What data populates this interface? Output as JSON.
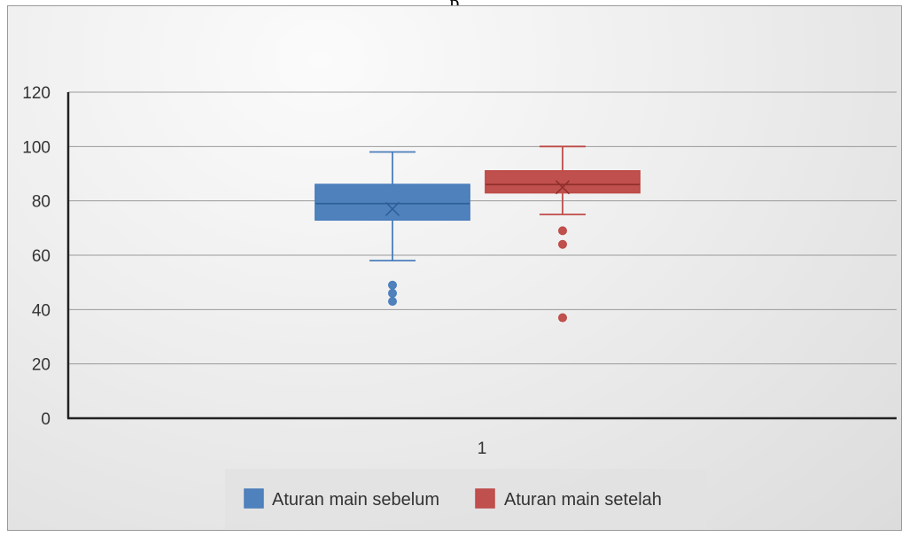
{
  "header": {
    "title_fragment": "p"
  },
  "chart_data": {
    "type": "boxplot",
    "categories": [
      "1"
    ],
    "ylim": [
      0,
      120
    ],
    "yticks": [
      0,
      20,
      40,
      60,
      80,
      100,
      120
    ],
    "grid": true,
    "legend_position": "bottom",
    "series": [
      {
        "name": "Aturan main sebelum",
        "color": "#4a7ebb",
        "fill": "#4f81bd",
        "min": 58,
        "q1": 73,
        "median": 79,
        "mean": 77,
        "q3": 86,
        "max": 98,
        "outliers": [
          49,
          46,
          43
        ]
      },
      {
        "name": "Aturan main setelah",
        "color": "#be4b48",
        "fill": "#c0504d",
        "min": 75,
        "q1": 83,
        "median": 86,
        "mean": 85,
        "q3": 91,
        "max": 100,
        "outliers": [
          69,
          64,
          37
        ]
      }
    ]
  }
}
